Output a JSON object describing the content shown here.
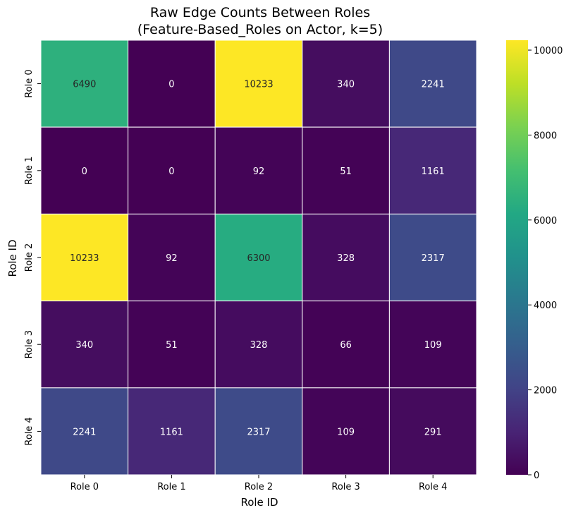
{
  "chart_data": {
    "type": "heatmap",
    "title_line1": "Raw Edge Counts Between Roles",
    "title_line2": "(Feature-Based_Roles on Actor, k=5)",
    "xlabel": "Role ID",
    "ylabel": "Role ID",
    "x_categories": [
      "Role 0",
      "Role 1",
      "Role 2",
      "Role 3",
      "Role 4"
    ],
    "y_categories": [
      "Role 0",
      "Role 1",
      "Role 2",
      "Role 3",
      "Role 4"
    ],
    "values": [
      [
        6490,
        0,
        10233,
        340,
        2241
      ],
      [
        0,
        0,
        92,
        51,
        1161
      ],
      [
        10233,
        92,
        6300,
        328,
        2317
      ],
      [
        340,
        51,
        328,
        66,
        109
      ],
      [
        2241,
        1161,
        2317,
        109,
        291
      ]
    ],
    "colormap": "viridis",
    "colorbar": {
      "range": [
        0,
        10233
      ],
      "ticks": [
        0,
        2000,
        4000,
        6000,
        8000,
        10000
      ]
    },
    "annotations": true,
    "cell_border_color": "#ffffff"
  }
}
